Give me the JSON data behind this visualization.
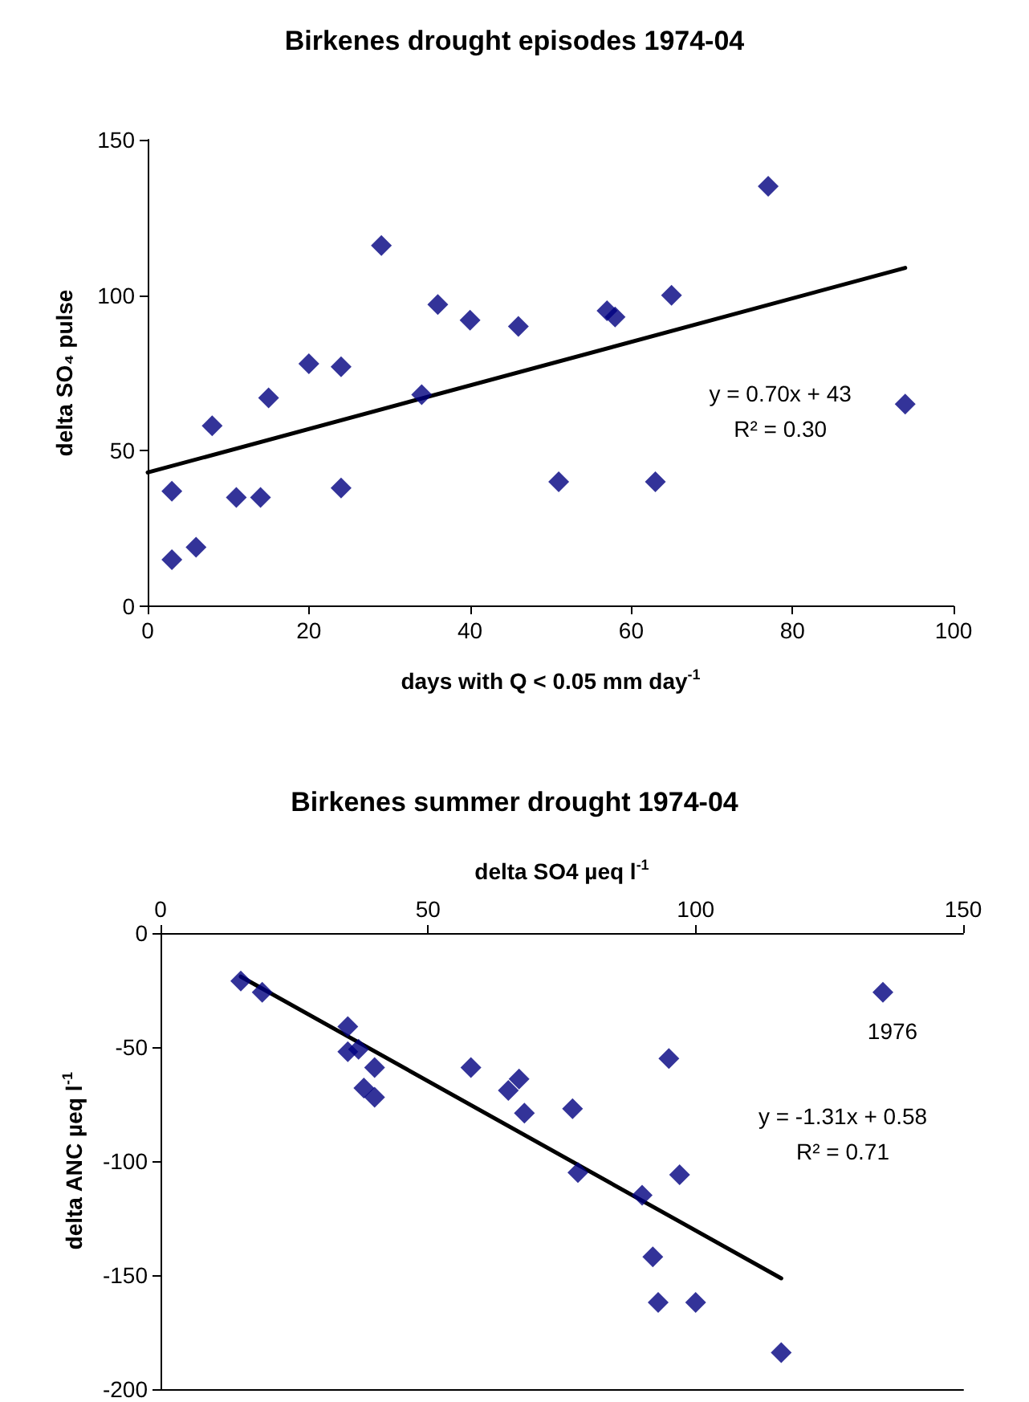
{
  "chart_data": [
    {
      "type": "scatter",
      "title": "Birkenes drought episodes 1974-04",
      "xlabel": "days with Q < 0.05 mm day$^{-1}$",
      "ylabel": "delta SO₄ pulse",
      "xlim": [
        0,
        100
      ],
      "xticks": [
        0,
        20,
        40,
        60,
        80,
        100
      ],
      "ylim": [
        0,
        150
      ],
      "yticks": [
        0,
        50,
        100,
        150
      ],
      "grid": false,
      "marker": "diamond",
      "series": [
        {
          "color": "#000080",
          "x": [
            3,
            3,
            6,
            8,
            11,
            14,
            15,
            20,
            24,
            24,
            29,
            34,
            36,
            40,
            46,
            51,
            57,
            58,
            63,
            65,
            77,
            94
          ],
          "values": [
            37,
            15,
            19,
            58,
            35,
            35,
            67,
            78,
            77,
            38,
            116,
            68,
            97,
            92,
            90,
            40,
            95,
            93,
            40,
            100,
            135,
            65
          ]
        },
        {
          "type": "line",
          "color": "#000000",
          "marker": "none",
          "line_style": "solid",
          "x": [
            0,
            94
          ],
          "values": [
            43,
            108.8
          ]
        }
      ],
      "annotations": [
        "y = 0.70x + 43",
        "R² = 0.30"
      ]
    },
    {
      "type": "scatter",
      "title": "Birkenes summer drought 1974-04",
      "xlabel": "delta SO4 µeq l$^{-1}$",
      "ylabel": "delta ANC µeq l$^{-1}$",
      "xlim": [
        0,
        150
      ],
      "xticks": [
        0,
        50,
        100,
        150
      ],
      "ylim": [
        -200,
        0
      ],
      "yticks": [
        -200,
        -150,
        -100,
        -50,
        0
      ],
      "grid": false,
      "marker": "diamond",
      "series": [
        {
          "color": "#000080",
          "x": [
            15,
            19,
            35,
            35,
            37,
            40,
            38,
            40,
            58,
            65,
            67,
            68,
            77,
            78,
            90,
            95,
            97,
            92,
            93,
            100,
            116
          ],
          "values": [
            -21,
            -26,
            -41,
            -52,
            -51,
            -59,
            -68,
            -72,
            -59,
            -69,
            -64,
            -79,
            -77,
            -105,
            -115,
            -55,
            -106,
            -142,
            -162,
            -162,
            -184
          ]
        },
        {
          "color": "#000080",
          "x": [
            135
          ],
          "values": [
            -26
          ]
        },
        {
          "type": "line",
          "color": "#000000",
          "marker": "none",
          "line_style": "solid",
          "x": [
            15,
            116
          ],
          "values": [
            -19.1,
            -151.4
          ]
        }
      ],
      "annotations": [
        {
          "text": "1976",
          "x": 135,
          "y": -26
        },
        "y = -1.31x + 0.58",
        "R² = 0.71"
      ]
    }
  ]
}
